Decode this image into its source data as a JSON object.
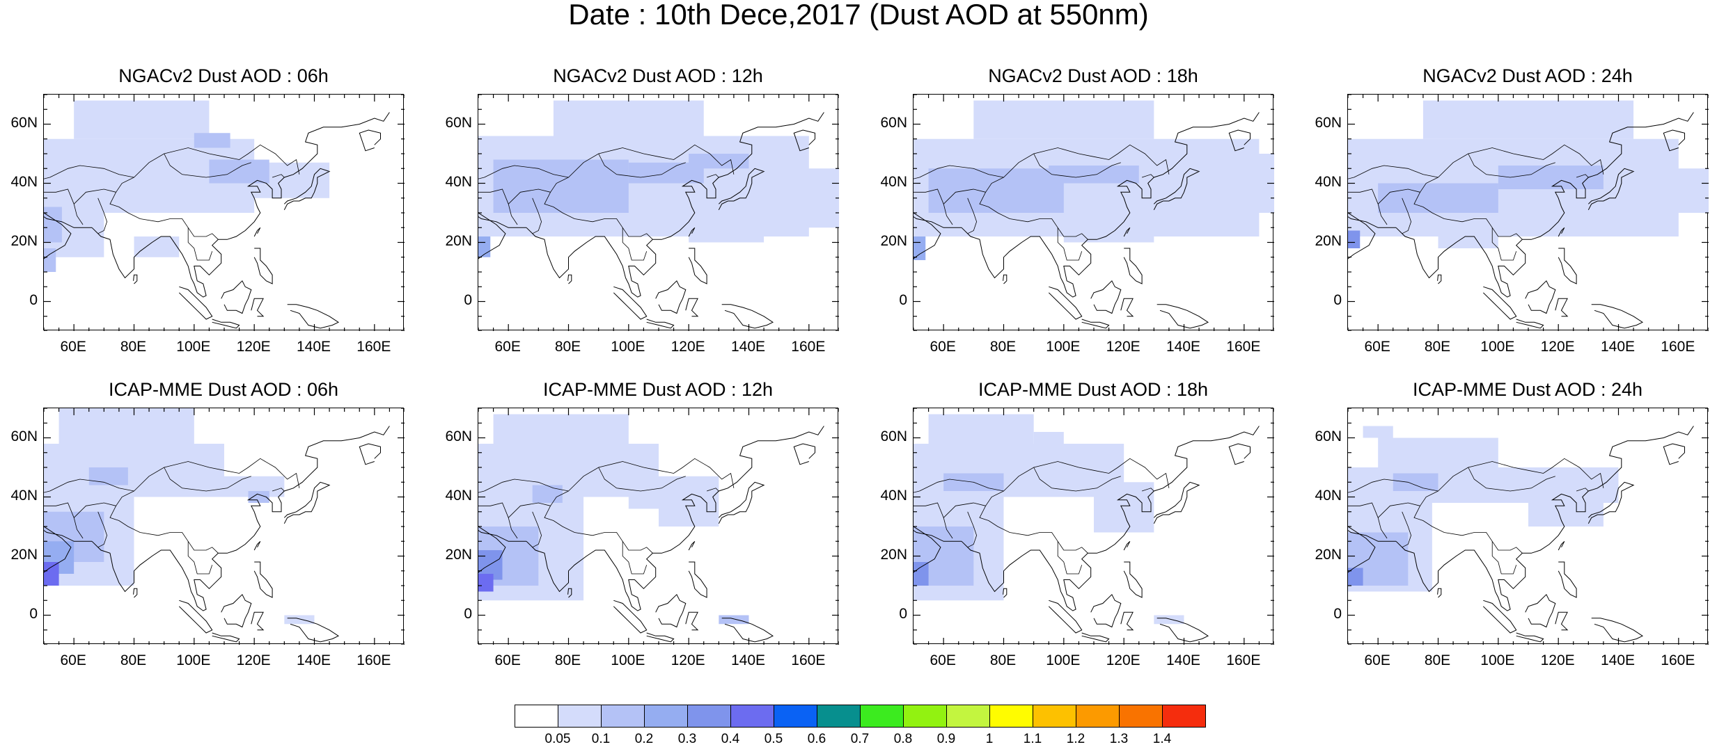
{
  "title": "Date : 10th Dece,2017 (Dust AOD at 550nm)",
  "axes": {
    "lat_labels": [
      "60N",
      "40N",
      "20N",
      "0"
    ],
    "lat_values": [
      60,
      40,
      20,
      0
    ],
    "lon_labels": [
      "60E",
      "80E",
      "100E",
      "120E",
      "140E",
      "160E"
    ],
    "lon_values": [
      60,
      80,
      100,
      120,
      140,
      160
    ],
    "lon_range": [
      50,
      170
    ],
    "lat_range": [
      -10,
      70
    ]
  },
  "panels": [
    {
      "title": "NGACv2 Dust AOD : 06h",
      "model": "NGACv2",
      "hour": "06h"
    },
    {
      "title": "NGACv2 Dust AOD : 12h",
      "model": "NGACv2",
      "hour": "12h"
    },
    {
      "title": "NGACv2 Dust AOD : 18h",
      "model": "NGACv2",
      "hour": "18h"
    },
    {
      "title": "NGACv2 Dust AOD : 24h",
      "model": "NGACv2",
      "hour": "24h"
    },
    {
      "title": "ICAP-MME Dust AOD : 06h",
      "model": "ICAP-MME",
      "hour": "06h"
    },
    {
      "title": "ICAP-MME Dust AOD : 12h",
      "model": "ICAP-MME",
      "hour": "12h"
    },
    {
      "title": "ICAP-MME Dust AOD : 18h",
      "model": "ICAP-MME",
      "hour": "18h"
    },
    {
      "title": "ICAP-MME Dust AOD : 24h",
      "model": "ICAP-MME",
      "hour": "24h"
    }
  ],
  "colorbar": {
    "labels": [
      "0.05",
      "0.1",
      "0.2",
      "0.3",
      "0.4",
      "0.5",
      "0.6",
      "0.7",
      "0.8",
      "0.9",
      "1",
      "1.1",
      "1.2",
      "1.3",
      "1.4"
    ],
    "colors": [
      "#ffffff",
      "#d4dcfb",
      "#b4c2f6",
      "#95adf1",
      "#7f94ec",
      "#6c6cf0",
      "#0a62f4",
      "#078f8e",
      "#3ceb1f",
      "#92f211",
      "#c3f53f",
      "#fffc00",
      "#fdc100",
      "#fc9a00",
      "#f97300",
      "#f52d0d"
    ]
  }
}
